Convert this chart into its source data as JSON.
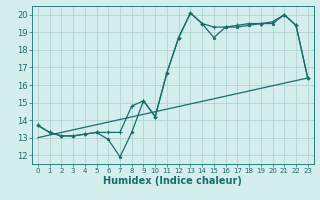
{
  "xlabel": "Humidex (Indice chaleur)",
  "bg_color": "#d4eeed",
  "grid_color": "#b0d4d0",
  "line_color": "#1a6b6b",
  "spine_color": "#2a8080",
  "xlim": [
    -0.5,
    23.5
  ],
  "ylim": [
    11.5,
    20.5
  ],
  "xticks": [
    0,
    1,
    2,
    3,
    4,
    5,
    6,
    7,
    8,
    9,
    10,
    11,
    12,
    13,
    14,
    15,
    16,
    17,
    18,
    19,
    20,
    21,
    22,
    23
  ],
  "yticks": [
    12,
    13,
    14,
    15,
    16,
    17,
    18,
    19,
    20
  ],
  "line1_x": [
    0,
    1,
    2,
    3,
    4,
    5,
    6,
    7,
    8,
    9,
    10,
    11,
    12,
    13,
    14,
    15,
    16,
    17,
    18,
    19,
    20,
    21,
    22,
    23
  ],
  "line1_y": [
    13.7,
    13.3,
    13.1,
    13.1,
    13.2,
    13.3,
    12.9,
    11.9,
    13.3,
    15.1,
    14.2,
    16.7,
    18.7,
    20.1,
    19.5,
    18.7,
    19.3,
    19.3,
    19.4,
    19.5,
    19.5,
    20.0,
    19.4,
    16.4
  ],
  "line2_x": [
    0,
    1,
    2,
    3,
    4,
    5,
    6,
    7,
    8,
    9,
    10,
    11,
    12,
    13,
    14,
    15,
    16,
    17,
    18,
    19,
    20,
    21,
    22,
    23
  ],
  "line2_y": [
    13.7,
    13.3,
    13.1,
    13.1,
    13.2,
    13.3,
    13.3,
    13.3,
    14.8,
    15.1,
    14.2,
    16.7,
    18.7,
    20.1,
    19.5,
    19.3,
    19.3,
    19.4,
    19.5,
    19.5,
    19.6,
    20.0,
    19.4,
    16.4
  ],
  "line3_x": [
    0,
    23
  ],
  "line3_y": [
    13.0,
    16.4
  ]
}
